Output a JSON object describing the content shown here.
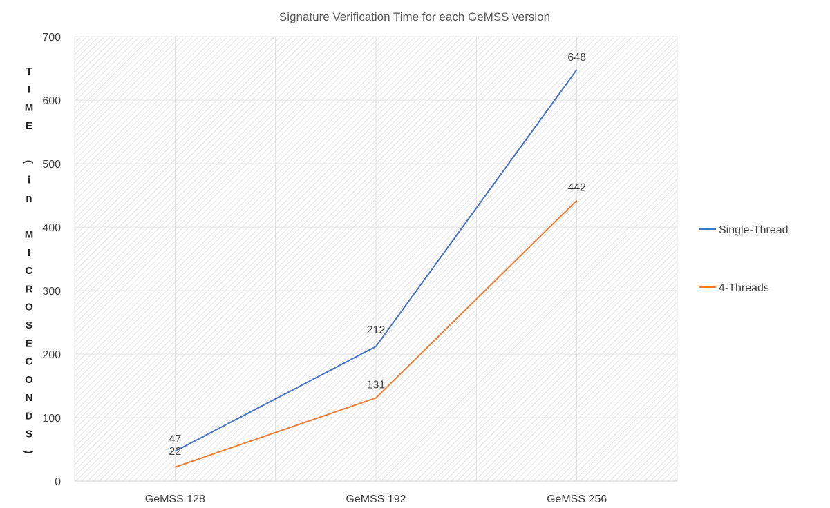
{
  "chart_data": {
    "type": "line",
    "title": "Signature Verification Time for each GeMSS version",
    "xlabel": "",
    "ylabel": "TIME (in MICROSECONDS)",
    "ylabel_chars": [
      "T",
      "I",
      "M",
      "E",
      "(",
      "i",
      "n",
      "M",
      "I",
      "C",
      "R",
      "O",
      "S",
      "E",
      "C",
      "O",
      "N",
      "D",
      "S",
      ")"
    ],
    "categories": [
      "GeMSS 128",
      "GeMSS 192",
      "GeMSS 256"
    ],
    "ylim": [
      0,
      700
    ],
    "yticks": [
      0,
      100,
      200,
      300,
      400,
      500,
      600,
      700
    ],
    "grid": true,
    "legend_position": "right",
    "series": [
      {
        "name": "Single-Thread",
        "values": [
          47,
          212,
          648
        ],
        "color": "#4472C4"
      },
      {
        "name": "4-Threads",
        "values": [
          22,
          131,
          442
        ],
        "color": "#ED7D31"
      }
    ]
  }
}
